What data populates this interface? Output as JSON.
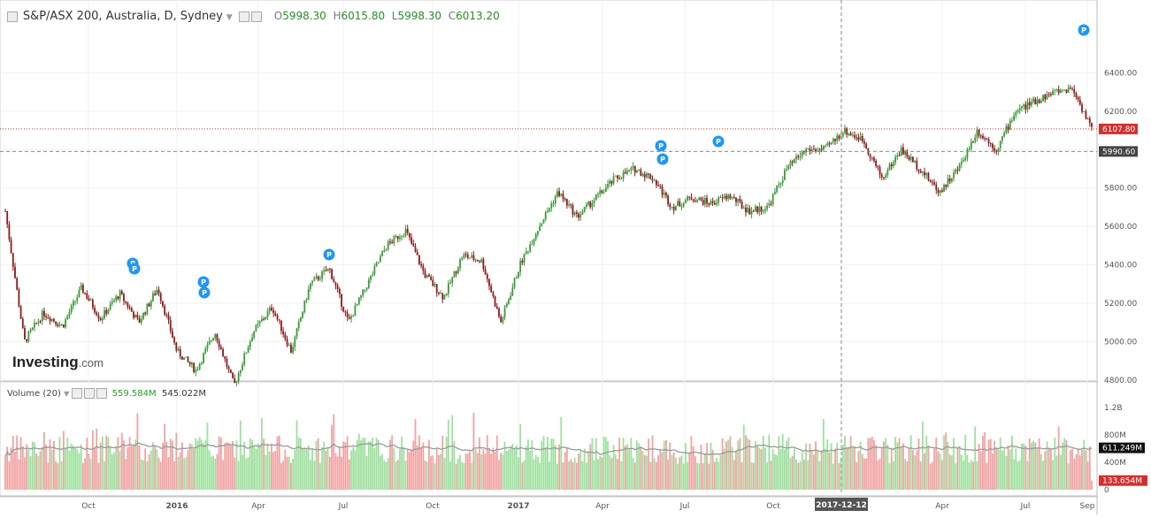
{
  "header": {
    "symbol": "S&P/ASX 200, Australia, D, Sydney",
    "open_label": "O",
    "open": "5998.30",
    "high_label": "H",
    "high": "6015.80",
    "low_label": "L",
    "low": "5998.30",
    "close_label": "C",
    "close": "6013.20"
  },
  "volume_header": {
    "label": "Volume (20)",
    "value_up": "559.584M",
    "value_ma": "545.022M"
  },
  "logo": {
    "brand": "Investing",
    "suffix": ".com"
  },
  "crosshair_date": "2017-12-12",
  "colors": {
    "up": "#3b9a3b",
    "down": "#8b1a1a",
    "vol_up": "#9fe09f",
    "vol_down": "#f0a3a3",
    "ma": "#9a9a9a",
    "price_line": "#cc3333",
    "marker": "#2196f3"
  },
  "chart_data": [
    {
      "type": "candlestick",
      "title": "S&P/ASX 200, Australia, D, Sydney",
      "x_ticks": [
        "Oct",
        "2016",
        "Apr",
        "Jul",
        "Oct",
        "2017",
        "Apr",
        "Jul",
        "Oct",
        "2017-12-12",
        "Apr",
        "Jul",
        "Sep"
      ],
      "y_ticks": [
        "4800.00",
        "5000.00",
        "5200.00",
        "5400.00",
        "5600.00",
        "5800.00",
        "6000.00",
        "6200.00",
        "6400.00"
      ],
      "ylim": [
        4680,
        6480
      ],
      "last_price": "6107.80",
      "crosshair_price": "5990.60",
      "markers": [
        "P",
        "P",
        "P",
        "P",
        "P",
        "P",
        "P",
        "P",
        "P"
      ],
      "close_path": [
        {
          "x": "2015-08",
          "y": 5680
        },
        {
          "x": "2015-09",
          "y": 5000
        },
        {
          "x": "2015-09",
          "y": 5150
        },
        {
          "x": "2015-10",
          "y": 5080
        },
        {
          "x": "2015-10",
          "y": 5280
        },
        {
          "x": "2015-11",
          "y": 5120
        },
        {
          "x": "2015-11",
          "y": 5250
        },
        {
          "x": "2015-12",
          "y": 5100
        },
        {
          "x": "2015-12",
          "y": 5280
        },
        {
          "x": "2016-01",
          "y": 4950
        },
        {
          "x": "2016-02",
          "y": 4850
        },
        {
          "x": "2016-02",
          "y": 5050
        },
        {
          "x": "2016-03",
          "y": 4770
        },
        {
          "x": "2016-03",
          "y": 5050
        },
        {
          "x": "2016-04",
          "y": 5180
        },
        {
          "x": "2016-04",
          "y": 4950
        },
        {
          "x": "2016-05",
          "y": 5300
        },
        {
          "x": "2016-06",
          "y": 5380
        },
        {
          "x": "2016-06",
          "y": 5100
        },
        {
          "x": "2016-07",
          "y": 5300
        },
        {
          "x": "2016-07",
          "y": 5500
        },
        {
          "x": "2016-08",
          "y": 5580
        },
        {
          "x": "2016-09",
          "y": 5350
        },
        {
          "x": "2016-09",
          "y": 5230
        },
        {
          "x": "2016-10",
          "y": 5450
        },
        {
          "x": "2016-10",
          "y": 5420
        },
        {
          "x": "2016-11",
          "y": 5100
        },
        {
          "x": "2016-11",
          "y": 5400
        },
        {
          "x": "2016-12",
          "y": 5600
        },
        {
          "x": "2017-01",
          "y": 5780
        },
        {
          "x": "2017-02",
          "y": 5650
        },
        {
          "x": "2017-02",
          "y": 5750
        },
        {
          "x": "2017-03",
          "y": 5850
        },
        {
          "x": "2017-04",
          "y": 5900
        },
        {
          "x": "2017-04",
          "y": 5850
        },
        {
          "x": "2017-05",
          "y": 5700
        },
        {
          "x": "2017-06",
          "y": 5750
        },
        {
          "x": "2017-07",
          "y": 5720
        },
        {
          "x": "2017-08",
          "y": 5760
        },
        {
          "x": "2017-09",
          "y": 5680
        },
        {
          "x": "2017-10",
          "y": 5700
        },
        {
          "x": "2017-10",
          "y": 5900
        },
        {
          "x": "2017-11",
          "y": 6000
        },
        {
          "x": "2017-12",
          "y": 6000
        },
        {
          "x": "2018-01",
          "y": 6100
        },
        {
          "x": "2018-01",
          "y": 6050
        },
        {
          "x": "2018-02",
          "y": 5850
        },
        {
          "x": "2018-02",
          "y": 6000
        },
        {
          "x": "2018-03",
          "y": 5900
        },
        {
          "x": "2018-03",
          "y": 5780
        },
        {
          "x": "2018-04",
          "y": 5900
        },
        {
          "x": "2018-05",
          "y": 6100
        },
        {
          "x": "2018-05",
          "y": 6000
        },
        {
          "x": "2018-06",
          "y": 6200
        },
        {
          "x": "2018-07",
          "y": 6250
        },
        {
          "x": "2018-08",
          "y": 6300
        },
        {
          "x": "2018-08",
          "y": 6320
        },
        {
          "x": "2018-09",
          "y": 6107.8
        }
      ]
    },
    {
      "type": "bar",
      "title": "Volume (20)",
      "y_ticks": [
        "0",
        "400M",
        "800M",
        "1.2B"
      ],
      "ylim": [
        0,
        1400
      ],
      "unit": "M",
      "ma_value": "611.249M",
      "last_value": "133.654M"
    }
  ]
}
